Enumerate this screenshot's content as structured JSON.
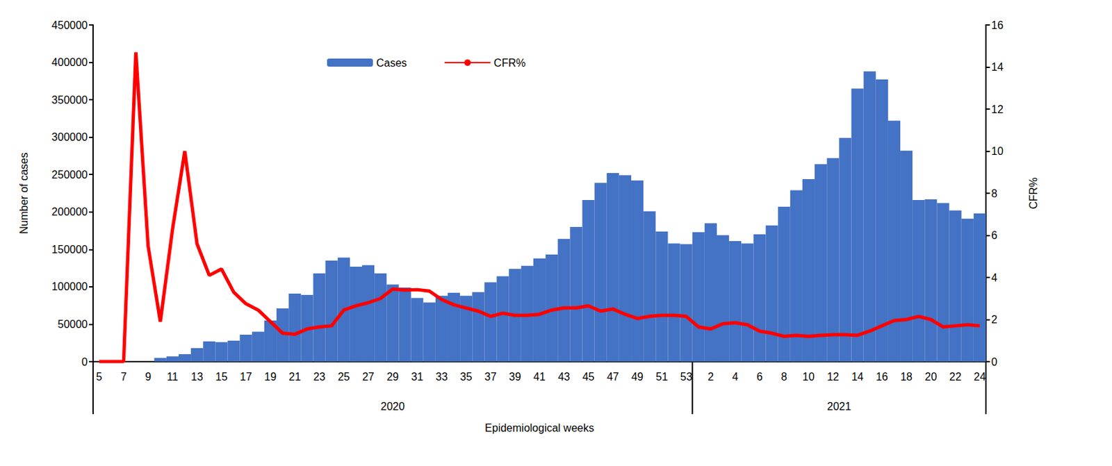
{
  "chart_data": {
    "type": "bar",
    "x_label": "Epidemiological weeks",
    "y_label": "Number of cases",
    "y2_label": "CFR%",
    "categories": [
      5,
      null,
      7,
      null,
      9,
      null,
      11,
      null,
      13,
      null,
      15,
      null,
      17,
      null,
      19,
      null,
      21,
      null,
      23,
      null,
      25,
      null,
      27,
      null,
      29,
      null,
      31,
      null,
      33,
      null,
      35,
      null,
      37,
      null,
      39,
      null,
      41,
      null,
      43,
      null,
      45,
      null,
      47,
      null,
      49,
      null,
      51,
      null,
      53,
      null,
      2,
      null,
      4,
      null,
      6,
      null,
      8,
      null,
      10,
      null,
      12,
      null,
      14,
      null,
      16,
      null,
      18,
      null,
      20,
      null,
      22,
      null,
      24
    ],
    "x_groups": [
      {
        "label": "2020",
        "count": 49
      },
      {
        "label": "2021",
        "count": 24
      }
    ],
    "series": [
      {
        "name": "Cases",
        "type": "bar",
        "color": "#4472c4",
        "values": [
          0,
          0,
          0,
          0,
          0,
          5000,
          7000,
          10000,
          18000,
          27000,
          26000,
          28000,
          36000,
          40000,
          55000,
          71000,
          91000,
          89000,
          118000,
          135000,
          139000,
          127000,
          129000,
          118000,
          103000,
          99000,
          85000,
          79000,
          88000,
          92000,
          88000,
          93000,
          106000,
          114000,
          124000,
          128000,
          138000,
          143000,
          164000,
          180000,
          216000,
          239000,
          252000,
          249000,
          242000,
          201000,
          174000,
          158000,
          157000,
          173000,
          185000,
          169000,
          161000,
          158000,
          170000,
          182000,
          207000,
          229000,
          244000,
          264000,
          272000,
          299000,
          365000,
          388000,
          377000,
          322000,
          282000,
          216000,
          217000,
          212000,
          202000,
          191000,
          198000
        ]
      },
      {
        "name": "CFR%",
        "type": "line",
        "axis": "y2",
        "color": "#ff0000",
        "values": [
          0,
          0,
          0,
          14.7,
          5.5,
          1.9,
          6.3,
          10.0,
          5.6,
          4.1,
          4.4,
          3.3,
          2.75,
          2.45,
          1.9,
          1.35,
          1.3,
          1.55,
          1.65,
          1.7,
          2.45,
          2.65,
          2.8,
          3.0,
          3.45,
          3.4,
          3.42,
          3.35,
          2.95,
          2.7,
          2.55,
          2.4,
          2.15,
          2.3,
          2.2,
          2.2,
          2.25,
          2.45,
          2.55,
          2.55,
          2.65,
          2.4,
          2.5,
          2.25,
          2.05,
          2.15,
          2.2,
          2.2,
          2.15,
          1.65,
          1.55,
          1.8,
          1.85,
          1.75,
          1.45,
          1.35,
          1.2,
          1.25,
          1.2,
          1.25,
          1.28,
          1.28,
          1.25,
          1.45,
          1.7,
          1.95,
          2.0,
          2.15,
          2.0,
          1.65,
          1.7,
          1.75,
          1.7
        ]
      }
    ],
    "ylim": [
      0,
      450000
    ],
    "yticks": [
      0,
      50000,
      100000,
      150000,
      200000,
      250000,
      300000,
      350000,
      400000,
      450000
    ],
    "y2lim": [
      0,
      16
    ],
    "y2ticks": [
      0,
      2,
      4,
      6,
      8,
      10,
      12,
      14,
      16
    ],
    "legend": "top",
    "grid": false
  }
}
